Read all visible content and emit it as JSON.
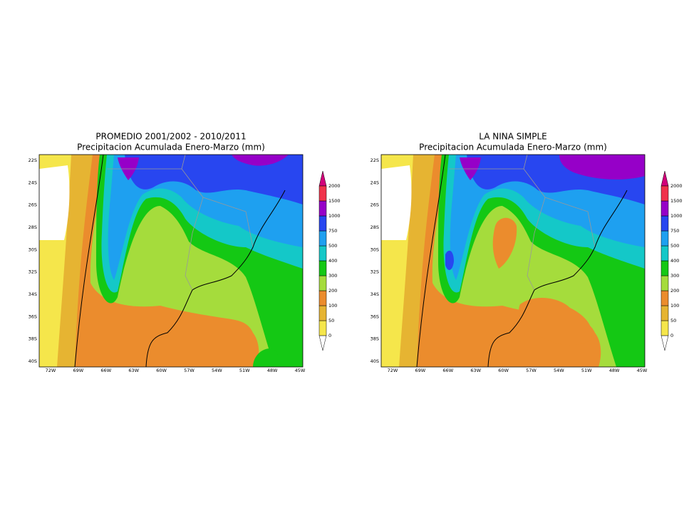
{
  "panels": [
    {
      "title": "PROMEDIO 2001/2002 - 2010/2011",
      "subtitle": "Precipitacion Acumulada Enero-Marzo (mm)",
      "lat_labels": [
        "22S",
        "24S",
        "26S",
        "28S",
        "30S",
        "32S",
        "34S",
        "36S",
        "38S",
        "40S"
      ],
      "lon_labels": [
        "72W",
        "69W",
        "66W",
        "63W",
        "60W",
        "57W",
        "54W",
        "51W",
        "48W",
        "45W"
      ]
    },
    {
      "title": "LA NINA SIMPLE",
      "subtitle": "Precipitacion Acumulada Enero-Marzo (mm)",
      "lat_labels": [
        "22S",
        "24S",
        "26S",
        "28S",
        "30S",
        "32S",
        "34S",
        "36S",
        "38S",
        "40S"
      ],
      "lon_labels": [
        "72W",
        "69W",
        "66W",
        "63W",
        "60W",
        "57W",
        "54W",
        "51W",
        "48W",
        "45W"
      ]
    }
  ],
  "colorbar": {
    "labels": [
      "0",
      "50",
      "100",
      "200",
      "300",
      "400",
      "500",
      "750",
      "1000",
      "1500",
      "2000"
    ],
    "under_color": "#ffffff",
    "colors": [
      "#f5e64b",
      "#e6b432",
      "#eb8c2d",
      "#a5dc3c",
      "#14c814",
      "#14c8c8",
      "#1ea0f0",
      "#2846f0",
      "#9600c8",
      "#f0324b"
    ],
    "over_color": "#d2007a"
  }
}
